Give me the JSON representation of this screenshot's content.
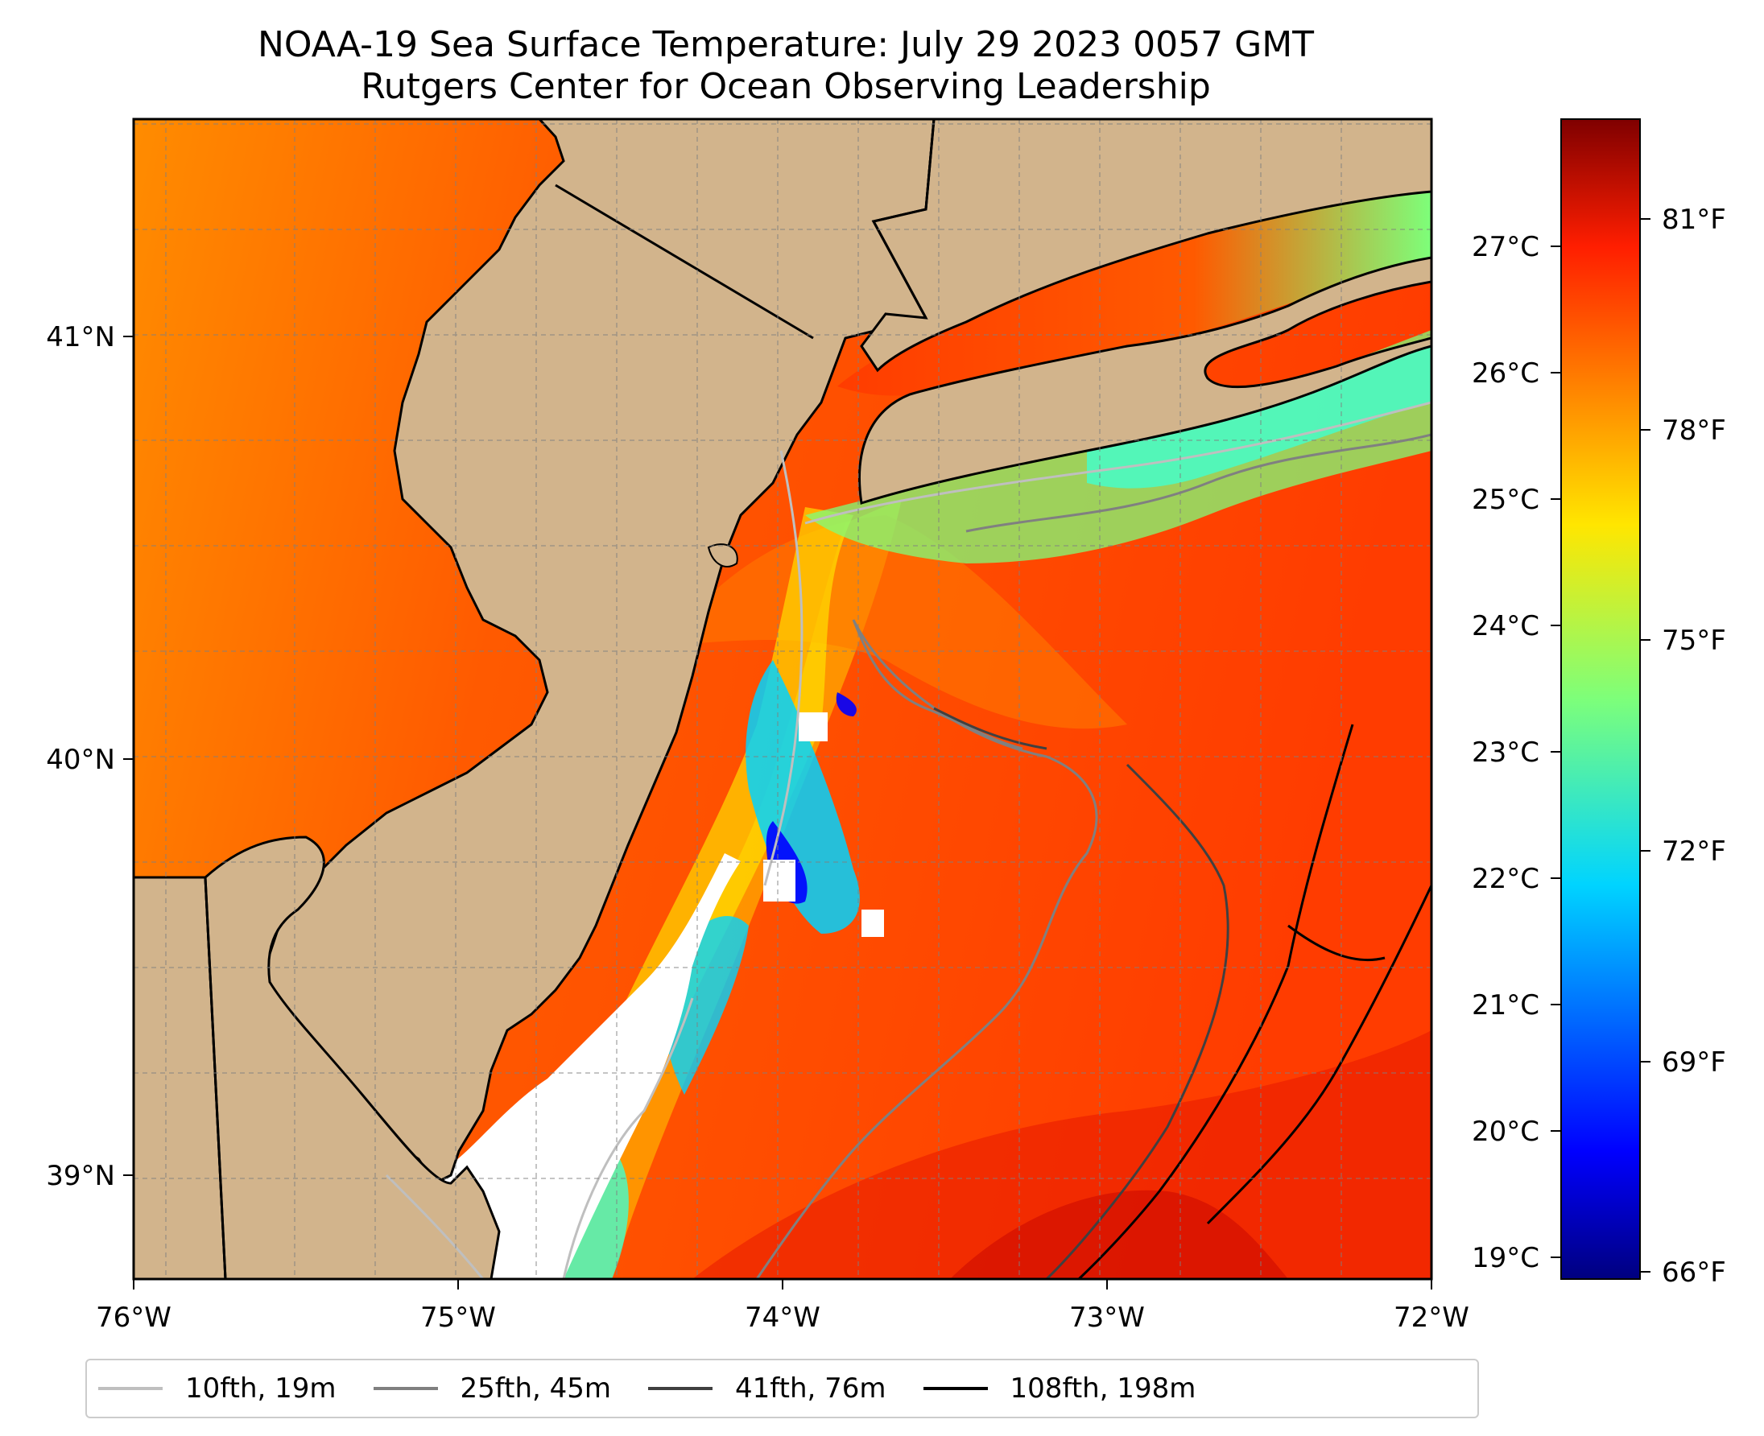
{
  "title": {
    "line1": "NOAA-19 Sea Surface Temperature: July 29 2023 0057 GMT",
    "line2": "Rutgers Center for Ocean Observing Leadership"
  },
  "map": {
    "lon_range": [
      -76,
      -72
    ],
    "lat_range": [
      38.75,
      41.5
    ],
    "lon_ticks": [
      "76°W",
      "75°W",
      "74°W",
      "73°W",
      "72°W"
    ],
    "lat_ticks": [
      "41°N",
      "40°N",
      "39°N"
    ],
    "gridlines": true,
    "land_color": "#d2b48c",
    "no_data_color": "#ffffff"
  },
  "colorbar": {
    "colormap": "jet",
    "celsius_ticks": [
      "27°C",
      "26°C",
      "25°C",
      "24°C",
      "23°C",
      "22°C",
      "21°C",
      "20°C",
      "19°C"
    ],
    "fahrenheit_ticks": [
      "81°F",
      "78°F",
      "75°F",
      "72°F",
      "69°F",
      "66°F"
    ],
    "range_f": [
      65.7,
      82.2
    ]
  },
  "legend": {
    "items": [
      {
        "label": "10fth, 19m",
        "color": "#bfbfbf"
      },
      {
        "label": "25fth, 45m",
        "color": "#808080"
      },
      {
        "label": "41fth, 76m",
        "color": "#404040"
      },
      {
        "label": "108fth, 198m",
        "color": "#000000"
      }
    ]
  }
}
